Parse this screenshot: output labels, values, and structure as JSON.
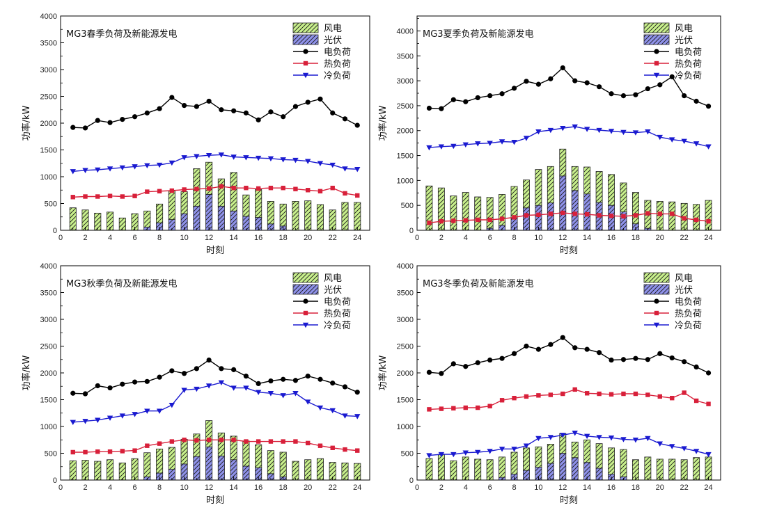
{
  "chart_data": [
    {
      "type": "bar",
      "title": "MG3春季负荷及新能源发电",
      "xlabel": "时刻",
      "ylabel": "功率/kW",
      "xlim": [
        0,
        25
      ],
      "ylim": [
        0,
        4000
      ],
      "x_ticks": [
        0,
        2,
        4,
        6,
        8,
        10,
        12,
        14,
        16,
        18,
        20,
        22,
        24
      ],
      "y_ticks": [
        0,
        500,
        1000,
        1500,
        2000,
        2500,
        3000,
        3500,
        4000
      ],
      "x": [
        1,
        2,
        3,
        4,
        5,
        6,
        7,
        8,
        9,
        10,
        11,
        12,
        13,
        14,
        15,
        16,
        17,
        18,
        19,
        20,
        21,
        22,
        23,
        24
      ],
      "legend_position": "top-right",
      "series": [
        {
          "name": "风电",
          "kind": "stacked_bar",
          "color": "#c8f08c",
          "values": [
            420,
            380,
            320,
            340,
            230,
            310,
            300,
            350,
            530,
            410,
            700,
            600,
            510,
            720,
            400,
            520,
            420,
            410,
            540,
            550,
            480,
            380,
            520,
            520
          ]
        },
        {
          "name": "光伏",
          "kind": "stacked_bar",
          "color": "#8f92ea",
          "values": [
            0,
            0,
            0,
            0,
            0,
            0,
            60,
            140,
            200,
            310,
            450,
            670,
            450,
            360,
            260,
            240,
            120,
            80,
            0,
            0,
            0,
            0,
            0,
            0
          ]
        },
        {
          "name": "电负荷",
          "kind": "line",
          "marker": "circle",
          "color": "#000000",
          "values": [
            1920,
            1910,
            2050,
            2010,
            2070,
            2120,
            2190,
            2270,
            2480,
            2330,
            2310,
            2410,
            2250,
            2230,
            2190,
            2060,
            2210,
            2120,
            2310,
            2390,
            2450,
            2190,
            2080,
            1960
          ]
        },
        {
          "name": "热负荷",
          "kind": "line",
          "marker": "square",
          "color": "#d8203a",
          "values": [
            620,
            630,
            630,
            640,
            630,
            640,
            720,
            730,
            740,
            760,
            770,
            780,
            820,
            790,
            790,
            780,
            790,
            790,
            770,
            750,
            730,
            790,
            690,
            650
          ]
        },
        {
          "name": "冷负荷",
          "kind": "line",
          "marker": "triangle-down",
          "color": "#1a1ad0",
          "values": [
            1100,
            1120,
            1130,
            1150,
            1170,
            1190,
            1210,
            1220,
            1260,
            1360,
            1380,
            1400,
            1410,
            1370,
            1360,
            1350,
            1340,
            1320,
            1310,
            1290,
            1250,
            1220,
            1150,
            1140
          ]
        }
      ]
    },
    {
      "type": "bar",
      "title": "MG3夏季负荷及新能源发电",
      "xlabel": "时刻",
      "ylabel": "功率/kW",
      "xlim": [
        0,
        25
      ],
      "ylim": [
        0,
        4300
      ],
      "x_ticks": [
        0,
        2,
        4,
        6,
        8,
        10,
        12,
        14,
        16,
        18,
        20,
        22,
        24
      ],
      "y_ticks": [
        0,
        500,
        1000,
        1500,
        2000,
        2500,
        3000,
        3500,
        4000
      ],
      "x": [
        1,
        2,
        3,
        4,
        5,
        6,
        7,
        8,
        9,
        10,
        11,
        12,
        13,
        14,
        15,
        16,
        17,
        18,
        19,
        20,
        21,
        22,
        23,
        24
      ],
      "legend_position": "top-right",
      "series": [
        {
          "name": "风电",
          "kind": "stacked_bar",
          "color": "#c8f08c",
          "values": [
            890,
            850,
            690,
            760,
            670,
            620,
            620,
            640,
            560,
            720,
            730,
            540,
            480,
            540,
            620,
            620,
            580,
            630,
            560,
            580,
            570,
            540,
            520,
            600
          ]
        },
        {
          "name": "光伏",
          "kind": "stacked_bar",
          "color": "#8f92ea",
          "values": [
            0,
            0,
            0,
            0,
            0,
            40,
            100,
            240,
            450,
            500,
            550,
            1090,
            800,
            730,
            560,
            500,
            370,
            130,
            40,
            0,
            0,
            0,
            0,
            0
          ]
        },
        {
          "name": "电负荷",
          "kind": "line",
          "marker": "circle",
          "color": "#000000",
          "values": [
            2450,
            2440,
            2620,
            2580,
            2660,
            2700,
            2740,
            2850,
            2990,
            2930,
            3040,
            3260,
            3000,
            2960,
            2880,
            2740,
            2700,
            2720,
            2840,
            2920,
            3080,
            2700,
            2590,
            2490
          ]
        },
        {
          "name": "热负荷",
          "kind": "line",
          "marker": "square",
          "color": "#d8203a",
          "values": [
            150,
            180,
            190,
            200,
            210,
            210,
            230,
            260,
            300,
            310,
            330,
            350,
            330,
            320,
            300,
            290,
            280,
            300,
            340,
            330,
            330,
            240,
            210,
            180
          ]
        },
        {
          "name": "冷负荷",
          "kind": "line",
          "marker": "triangle-down",
          "color": "#1a1ad0",
          "values": [
            1660,
            1680,
            1690,
            1720,
            1740,
            1750,
            1780,
            1770,
            1850,
            1980,
            2010,
            2050,
            2080,
            2030,
            2010,
            1990,
            1970,
            1960,
            1980,
            1870,
            1820,
            1790,
            1740,
            1680
          ]
        }
      ]
    },
    {
      "type": "bar",
      "title": "MG3秋季负荷及新能源发电",
      "xlabel": "时刻",
      "ylabel": "功率/kW",
      "xlim": [
        0,
        25
      ],
      "ylim": [
        0,
        4000
      ],
      "x_ticks": [
        0,
        2,
        4,
        6,
        8,
        10,
        12,
        14,
        16,
        18,
        20,
        22,
        24
      ],
      "y_ticks": [
        0,
        500,
        1000,
        1500,
        2000,
        2500,
        3000,
        3500,
        4000
      ],
      "x": [
        1,
        2,
        3,
        4,
        5,
        6,
        7,
        8,
        9,
        10,
        11,
        12,
        13,
        14,
        15,
        16,
        17,
        18,
        19,
        20,
        21,
        22,
        23,
        24
      ],
      "legend_position": "top-right",
      "series": [
        {
          "name": "风电",
          "kind": "stacked_bar",
          "color": "#c8f08c",
          "values": [
            360,
            370,
            350,
            380,
            320,
            400,
            450,
            450,
            410,
            460,
            420,
            490,
            430,
            440,
            470,
            430,
            430,
            460,
            350,
            380,
            400,
            330,
            320,
            310
          ]
        },
        {
          "name": "光伏",
          "kind": "stacked_bar",
          "color": "#8f92ea",
          "values": [
            0,
            0,
            0,
            0,
            0,
            0,
            60,
            130,
            200,
            300,
            440,
            620,
            450,
            380,
            260,
            230,
            120,
            60,
            0,
            0,
            0,
            0,
            0,
            0
          ]
        },
        {
          "name": "电负荷",
          "kind": "line",
          "marker": "circle",
          "color": "#000000",
          "values": [
            1620,
            1610,
            1760,
            1720,
            1790,
            1830,
            1840,
            1920,
            2040,
            1990,
            2080,
            2240,
            2080,
            2060,
            1940,
            1800,
            1850,
            1880,
            1860,
            1940,
            1880,
            1810,
            1740,
            1640
          ]
        },
        {
          "name": "热负荷",
          "kind": "line",
          "marker": "square",
          "color": "#d8203a",
          "values": [
            520,
            520,
            530,
            530,
            540,
            550,
            640,
            680,
            720,
            750,
            740,
            750,
            750,
            750,
            720,
            720,
            720,
            720,
            720,
            690,
            640,
            600,
            570,
            550
          ]
        },
        {
          "name": "冷负荷",
          "kind": "line",
          "marker": "triangle-down",
          "color": "#1a1ad0",
          "values": [
            1080,
            1100,
            1120,
            1160,
            1200,
            1230,
            1290,
            1290,
            1400,
            1680,
            1700,
            1760,
            1820,
            1720,
            1720,
            1640,
            1620,
            1580,
            1620,
            1460,
            1350,
            1300,
            1200,
            1190
          ]
        }
      ]
    },
    {
      "type": "bar",
      "title": "MG3冬季负荷及新能源发电",
      "xlabel": "时刻",
      "ylabel": "功率/kW",
      "xlim": [
        0,
        25
      ],
      "ylim": [
        0,
        4000
      ],
      "x_ticks": [
        0,
        2,
        4,
        6,
        8,
        10,
        12,
        14,
        16,
        18,
        20,
        22,
        24
      ],
      "y_ticks": [
        0,
        500,
        1000,
        1500,
        2000,
        2500,
        3000,
        3500,
        4000
      ],
      "x": [
        1,
        2,
        3,
        4,
        5,
        6,
        7,
        8,
        9,
        10,
        11,
        12,
        13,
        14,
        15,
        16,
        17,
        18,
        19,
        20,
        21,
        22,
        23,
        24
      ],
      "legend_position": "top-right",
      "series": [
        {
          "name": "风电",
          "kind": "stacked_bar",
          "color": "#c8f08c",
          "values": [
            400,
            480,
            360,
            430,
            390,
            380,
            380,
            410,
            420,
            380,
            360,
            370,
            290,
            420,
            460,
            490,
            510,
            380,
            430,
            390,
            390,
            380,
            420,
            430
          ]
        },
        {
          "name": "光伏",
          "kind": "stacked_bar",
          "color": "#8f92ea",
          "values": [
            0,
            0,
            0,
            0,
            0,
            0,
            50,
            110,
            180,
            240,
            310,
            500,
            420,
            330,
            220,
            110,
            60,
            0,
            0,
            0,
            0,
            0,
            0,
            0
          ]
        },
        {
          "name": "电负荷",
          "kind": "line",
          "marker": "circle",
          "color": "#000000",
          "values": [
            2010,
            1990,
            2170,
            2120,
            2190,
            2240,
            2270,
            2360,
            2500,
            2440,
            2530,
            2660,
            2470,
            2440,
            2380,
            2240,
            2250,
            2270,
            2250,
            2360,
            2280,
            2210,
            2110,
            2000
          ]
        },
        {
          "name": "热负荷",
          "kind": "line",
          "marker": "square",
          "color": "#d8203a",
          "values": [
            1320,
            1330,
            1340,
            1350,
            1350,
            1380,
            1490,
            1530,
            1560,
            1580,
            1590,
            1610,
            1690,
            1620,
            1610,
            1600,
            1610,
            1610,
            1590,
            1560,
            1530,
            1630,
            1480,
            1420
          ]
        },
        {
          "name": "冷负荷",
          "kind": "line",
          "marker": "triangle-down",
          "color": "#1a1ad0",
          "values": [
            460,
            480,
            480,
            510,
            520,
            540,
            580,
            580,
            640,
            780,
            800,
            840,
            880,
            820,
            800,
            790,
            760,
            750,
            780,
            680,
            630,
            590,
            540,
            480
          ]
        }
      ]
    }
  ]
}
